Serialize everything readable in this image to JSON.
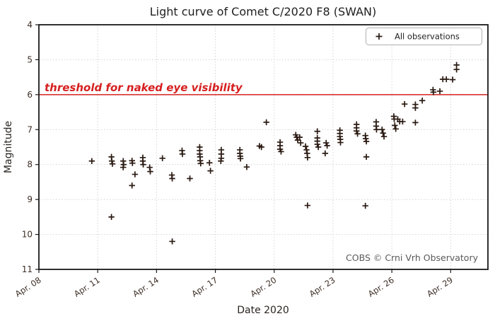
{
  "chart_data": {
    "type": "scatter",
    "title": "Light curve of Comet C/2020 F8 (SWAN)",
    "xlabel": "Date 2020",
    "ylabel": "Magnitude",
    "x_range": [
      8,
      30.9
    ],
    "y_range": [
      4,
      11
    ],
    "y_axis_inverted_note": "magnitude 4 at top, 11 at bottom",
    "grid": "dotted major gridlines on",
    "x_ticks": [
      {
        "value": 8,
        "label": "Apr. 08"
      },
      {
        "value": 11,
        "label": "Apr. 11"
      },
      {
        "value": 14,
        "label": "Apr. 14"
      },
      {
        "value": 17,
        "label": "Apr. 17"
      },
      {
        "value": 20,
        "label": "Apr. 20"
      },
      {
        "value": 23,
        "label": "Apr. 23"
      },
      {
        "value": 26,
        "label": "Apr. 26"
      },
      {
        "value": 29,
        "label": "Apr. 29"
      }
    ],
    "y_ticks": [
      4,
      5,
      6,
      7,
      8,
      9,
      10,
      11
    ],
    "legend": {
      "label": "All observations",
      "marker": "plus",
      "position": "upper right"
    },
    "threshold": {
      "value": 6,
      "label": "threshold for naked eye visibility",
      "color": "#d62020"
    },
    "watermark": "COBS © Crni Vrh Observatory",
    "marker_color": "#2a1a12",
    "series": [
      {
        "name": "All observations",
        "points": [
          [
            10.7,
            7.9
          ],
          [
            11.7,
            7.78
          ],
          [
            11.72,
            7.9
          ],
          [
            11.75,
            7.98
          ],
          [
            11.7,
            9.5
          ],
          [
            12.3,
            7.9
          ],
          [
            12.32,
            8.0
          ],
          [
            12.3,
            8.08
          ],
          [
            12.75,
            7.89
          ],
          [
            12.77,
            7.96
          ],
          [
            12.9,
            8.28
          ],
          [
            12.75,
            8.6
          ],
          [
            13.3,
            7.8
          ],
          [
            13.3,
            7.9
          ],
          [
            13.32,
            8.0
          ],
          [
            13.65,
            8.08
          ],
          [
            13.68,
            8.2
          ],
          [
            14.3,
            7.82
          ],
          [
            14.78,
            8.3
          ],
          [
            14.8,
            8.4
          ],
          [
            14.8,
            10.2
          ],
          [
            15.3,
            7.6
          ],
          [
            15.32,
            7.7
          ],
          [
            15.7,
            8.4
          ],
          [
            16.2,
            7.5
          ],
          [
            16.2,
            7.6
          ],
          [
            16.2,
            7.7
          ],
          [
            16.22,
            7.78
          ],
          [
            16.23,
            7.89
          ],
          [
            16.25,
            7.97
          ],
          [
            16.7,
            7.95
          ],
          [
            16.75,
            8.18
          ],
          [
            17.3,
            7.58
          ],
          [
            17.3,
            7.7
          ],
          [
            17.3,
            7.82
          ],
          [
            17.28,
            7.9
          ],
          [
            18.25,
            7.58
          ],
          [
            18.25,
            7.68
          ],
          [
            18.27,
            7.76
          ],
          [
            18.28,
            7.83
          ],
          [
            18.6,
            8.07
          ],
          [
            19.25,
            7.47
          ],
          [
            19.35,
            7.5
          ],
          [
            19.6,
            6.79
          ],
          [
            20.3,
            7.36
          ],
          [
            20.3,
            7.46
          ],
          [
            20.3,
            7.56
          ],
          [
            20.35,
            7.63
          ],
          [
            21.1,
            7.15
          ],
          [
            21.15,
            7.22
          ],
          [
            21.2,
            7.3
          ],
          [
            21.3,
            7.22
          ],
          [
            21.35,
            7.38
          ],
          [
            21.6,
            7.48
          ],
          [
            21.65,
            7.58
          ],
          [
            21.68,
            7.68
          ],
          [
            21.7,
            7.8
          ],
          [
            21.7,
            9.17
          ],
          [
            22.2,
            7.05
          ],
          [
            22.2,
            7.24
          ],
          [
            22.2,
            7.33
          ],
          [
            22.2,
            7.42
          ],
          [
            22.25,
            7.5
          ],
          [
            22.65,
            7.38
          ],
          [
            22.7,
            7.46
          ],
          [
            22.6,
            7.68
          ],
          [
            23.35,
            7.02
          ],
          [
            23.35,
            7.11
          ],
          [
            23.35,
            7.2
          ],
          [
            23.37,
            7.28
          ],
          [
            23.38,
            7.37
          ],
          [
            24.2,
            6.85
          ],
          [
            24.2,
            6.95
          ],
          [
            24.2,
            7.04
          ],
          [
            24.25,
            7.12
          ],
          [
            24.65,
            7.17
          ],
          [
            24.67,
            7.26
          ],
          [
            24.7,
            7.34
          ],
          [
            24.7,
            7.78
          ],
          [
            24.65,
            9.18
          ],
          [
            25.2,
            6.78
          ],
          [
            25.2,
            6.9
          ],
          [
            25.22,
            7.0
          ],
          [
            25.5,
            7.0
          ],
          [
            25.55,
            7.1
          ],
          [
            25.6,
            7.2
          ],
          [
            26.1,
            6.62
          ],
          [
            26.12,
            6.7
          ],
          [
            26.3,
            6.7
          ],
          [
            26.15,
            6.88
          ],
          [
            26.4,
            6.77
          ],
          [
            26.2,
            6.98
          ],
          [
            26.55,
            6.77
          ],
          [
            26.65,
            6.27
          ],
          [
            27.2,
            6.28
          ],
          [
            27.2,
            6.38
          ],
          [
            27.55,
            6.17
          ],
          [
            27.2,
            6.8
          ],
          [
            28.1,
            5.86
          ],
          [
            28.12,
            5.93
          ],
          [
            28.45,
            5.9
          ],
          [
            28.6,
            5.56
          ],
          [
            28.78,
            5.56
          ],
          [
            29.1,
            5.57
          ],
          [
            29.3,
            5.15
          ],
          [
            29.3,
            5.28
          ]
        ]
      }
    ]
  }
}
